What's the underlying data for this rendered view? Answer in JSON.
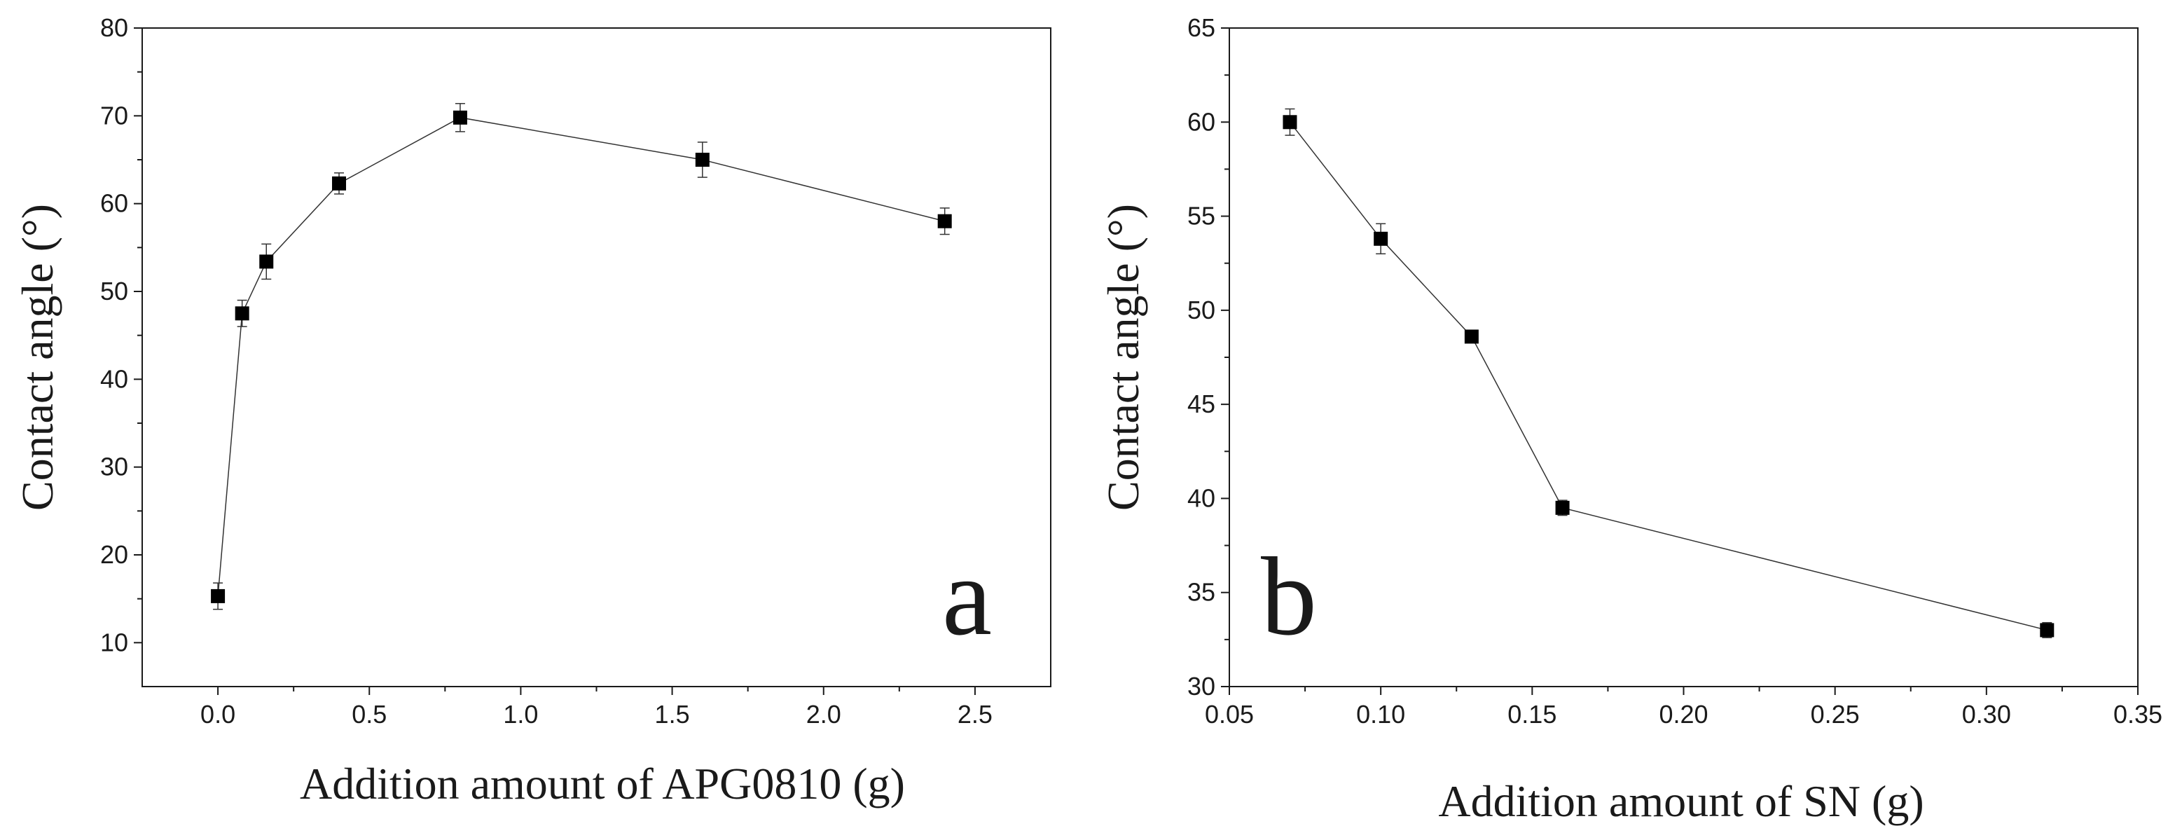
{
  "chart_data": [
    {
      "type": "line",
      "panel_label": "a",
      "title": "",
      "xlabel": "Addition amount of APG0810 (g)",
      "ylabel": "Contact angle (°)",
      "xlim": [
        -0.25,
        2.75
      ],
      "ylim": [
        5,
        80
      ],
      "xticks": [
        0.0,
        0.5,
        1.0,
        1.5,
        2.0,
        2.5
      ],
      "xtick_labels": [
        "0.0",
        "0.5",
        "1.0",
        "1.5",
        "2.0",
        "2.5"
      ],
      "yticks": [
        10,
        20,
        30,
        40,
        50,
        60,
        70,
        80
      ],
      "ytick_labels": [
        "10",
        "20",
        "30",
        "40",
        "50",
        "60",
        "70",
        "80"
      ],
      "x": [
        0.0,
        0.08,
        0.16,
        0.4,
        0.8,
        1.6,
        2.4
      ],
      "y": [
        15.3,
        47.5,
        53.4,
        62.3,
        69.8,
        65.0,
        58.0
      ],
      "yerr": [
        1.5,
        1.5,
        2.0,
        1.2,
        1.6,
        2.0,
        1.5
      ],
      "marker": "square",
      "grid": false
    },
    {
      "type": "line",
      "panel_label": "b",
      "title": "",
      "xlabel": "Addition amount of SN (g)",
      "ylabel": "Contact angle (°)",
      "xlim": [
        0.05,
        0.35
      ],
      "ylim": [
        30,
        65
      ],
      "xticks": [
        0.05,
        0.1,
        0.15,
        0.2,
        0.25,
        0.3,
        0.35
      ],
      "xtick_labels": [
        "0.05",
        "0.10",
        "0.15",
        "0.20",
        "0.25",
        "0.30",
        "0.35"
      ],
      "yticks": [
        30,
        35,
        40,
        45,
        50,
        55,
        60,
        65
      ],
      "ytick_labels": [
        "30",
        "35",
        "40",
        "45",
        "50",
        "55",
        "60",
        "65"
      ],
      "x": [
        0.07,
        0.1,
        0.13,
        0.16,
        0.32
      ],
      "y": [
        60.0,
        53.8,
        48.6,
        39.5,
        33.0
      ],
      "yerr": [
        0.7,
        0.8,
        0.3,
        0.4,
        0.4
      ],
      "marker": "square",
      "grid": false
    }
  ]
}
